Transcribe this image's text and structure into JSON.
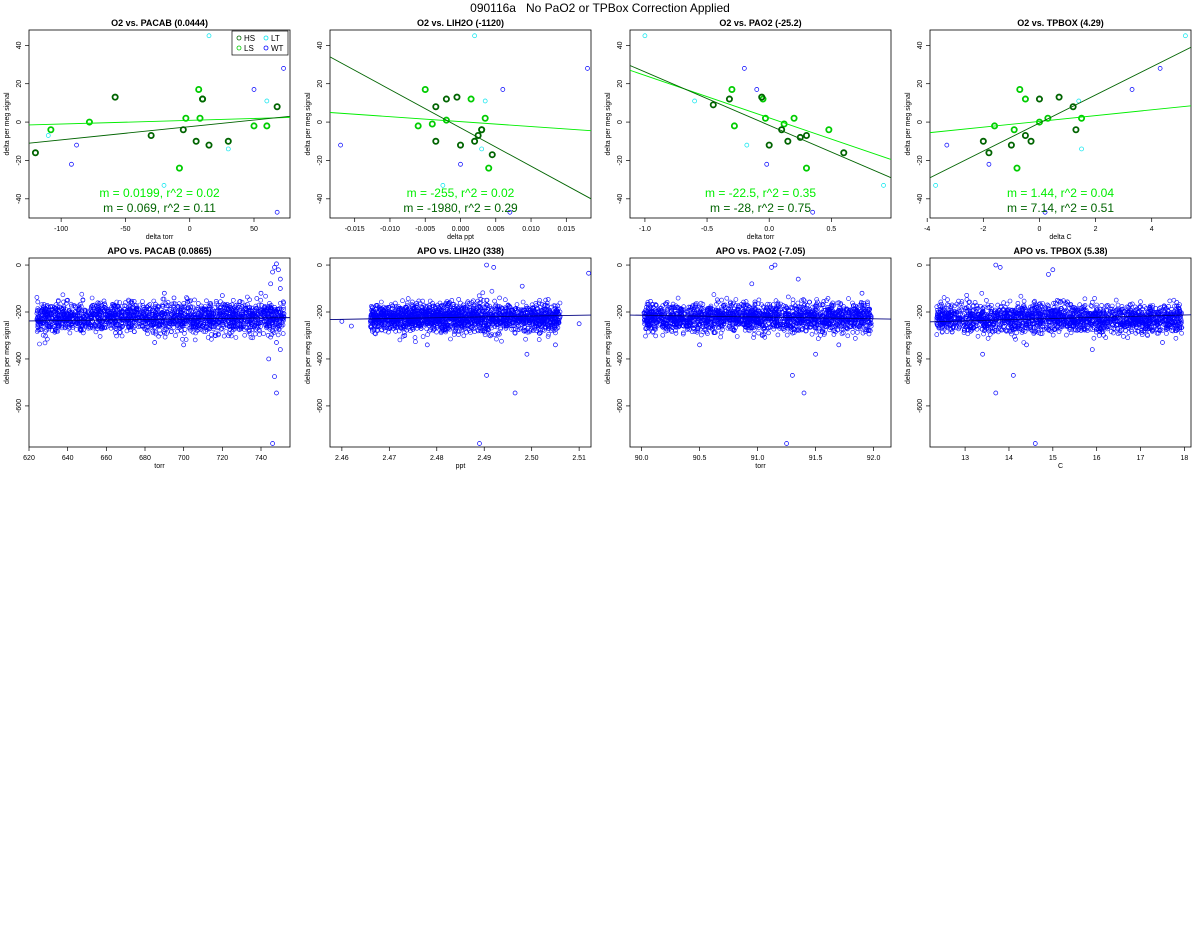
{
  "page": {
    "title": "090116a   No PaO2 or TPBox Correction Applied"
  },
  "colors": {
    "hs": "#006400",
    "ls": "#00cc00",
    "lt": "#00e5ee",
    "wt": "#0000ff",
    "green_fit": "#00ee00",
    "apo_fit": "#000080"
  },
  "chart_data": [
    {
      "id": "o2-pacab",
      "type": "scatter",
      "title": "O2 vs. PACAB (0.0444)",
      "xlabel": "delta torr",
      "ylabel": "delta per meg signal",
      "xlim": [
        -125,
        78
      ],
      "ylim": [
        -50,
        48
      ],
      "xticks": [
        -100,
        -50,
        0,
        50
      ],
      "yticks": [
        -40,
        -20,
        0,
        20,
        40
      ],
      "legend": {
        "position": "top-right",
        "entries": [
          {
            "label": "HS",
            "group": "hs"
          },
          {
            "label": "LT",
            "group": "lt"
          },
          {
            "label": "LS",
            "group": "ls"
          },
          {
            "label": "WT",
            "group": "wt"
          }
        ]
      },
      "fits": [
        {
          "color": "green_fit",
          "x": [
            -125,
            78
          ],
          "y": [
            -1.5,
            2.4
          ]
        },
        {
          "color": "hs",
          "x": [
            -125,
            78
          ],
          "y": [
            -11.0,
            3.0
          ]
        }
      ],
      "annotations": [
        {
          "text": "m = 0.0199, r^2 = 0.02",
          "color": "green_fit"
        },
        {
          "text": "m = 0.069, r^2 = 0.11",
          "color": "hs"
        }
      ],
      "points": {
        "hs": [
          [
            -120,
            -16
          ],
          [
            -58,
            13
          ],
          [
            -30,
            -7
          ],
          [
            -5,
            -4
          ],
          [
            5,
            -10
          ],
          [
            10,
            12
          ],
          [
            15,
            -12
          ],
          [
            30,
            -10
          ],
          [
            68,
            8
          ]
        ],
        "ls": [
          [
            -108,
            -4
          ],
          [
            -78,
            0
          ],
          [
            -8,
            -24
          ],
          [
            -3,
            2
          ],
          [
            7,
            17
          ],
          [
            8,
            2
          ],
          [
            10,
            12
          ],
          [
            50,
            -2
          ],
          [
            60,
            -2
          ]
        ],
        "lt": [
          [
            -110,
            -7
          ],
          [
            -20,
            -33
          ],
          [
            15,
            45
          ],
          [
            60,
            11
          ],
          [
            30,
            -14
          ]
        ],
        "wt": [
          [
            -88,
            -12
          ],
          [
            -92,
            -22
          ],
          [
            73,
            28
          ],
          [
            68,
            -47
          ],
          [
            50,
            17
          ]
        ]
      }
    },
    {
      "id": "o2-lih2o",
      "type": "scatter",
      "title": "O2 vs. LIH2O (-1120)",
      "xlabel": "delta ppt",
      "ylabel": "delta per meg signal",
      "xlim": [
        -0.0185,
        0.0185
      ],
      "ylim": [
        -50,
        48
      ],
      "xticks": [
        -0.015,
        -0.01,
        -0.005,
        0.0,
        0.005,
        0.01,
        0.015
      ],
      "xtick_labels": [
        "-0.015",
        "-0.010",
        "-0.005",
        "0.000",
        "0.005",
        "0.010",
        "0.015"
      ],
      "yticks": [
        -40,
        -20,
        0,
        20,
        40
      ],
      "fits": [
        {
          "color": "green_fit",
          "x": [
            -0.0185,
            0.0185
          ],
          "y": [
            5.0,
            -4.5
          ]
        },
        {
          "color": "hs",
          "x": [
            -0.0185,
            0.0185
          ],
          "y": [
            34.0,
            -40.0
          ]
        }
      ],
      "annotations": [
        {
          "text": "m = -255, r^2 = 0.02",
          "color": "green_fit"
        },
        {
          "text": "m = -1980, r^2 = 0.29",
          "color": "hs"
        }
      ],
      "points": {
        "hs": [
          [
            -0.0035,
            8
          ],
          [
            -0.0035,
            -10
          ],
          [
            -0.002,
            12
          ],
          [
            -0.0005,
            13
          ],
          [
            0.0,
            -12
          ],
          [
            0.002,
            -10
          ],
          [
            0.0025,
            -7
          ],
          [
            0.003,
            -4
          ],
          [
            0.0045,
            -17
          ]
        ],
        "ls": [
          [
            -0.006,
            -2
          ],
          [
            -0.005,
            17
          ],
          [
            -0.004,
            -1
          ],
          [
            -0.002,
            1
          ],
          [
            0.0015,
            12
          ],
          [
            0.003,
            -4
          ],
          [
            0.0035,
            2
          ],
          [
            0.004,
            -24
          ]
        ],
        "lt": [
          [
            -0.0025,
            -33
          ],
          [
            0.002,
            45
          ],
          [
            0.0035,
            11
          ],
          [
            0.003,
            -14
          ]
        ],
        "wt": [
          [
            -0.017,
            -12
          ],
          [
            0.018,
            28
          ],
          [
            0.007,
            -47
          ],
          [
            0.006,
            17
          ],
          [
            0.0,
            -22
          ]
        ]
      }
    },
    {
      "id": "o2-pao2",
      "type": "scatter",
      "title": "O2 vs. PAO2 (-25.2)",
      "xlabel": "delta torr",
      "ylabel": "delta per meg signal",
      "xlim": [
        -1.12,
        0.98
      ],
      "ylim": [
        -50,
        48
      ],
      "xticks": [
        -1.0,
        -0.5,
        0.0,
        0.5
      ],
      "xtick_labels": [
        "-1.0",
        "-0.5",
        "0.0",
        "0.5"
      ],
      "yticks": [
        -40,
        -20,
        0,
        20,
        40
      ],
      "fits": [
        {
          "color": "green_fit",
          "x": [
            -1.12,
            0.98
          ],
          "y": [
            27.0,
            -19.5
          ]
        },
        {
          "color": "hs",
          "x": [
            -1.12,
            0.98
          ],
          "y": [
            29.5,
            -29.0
          ]
        }
      ],
      "annotations": [
        {
          "text": "m = -22.5, r^2 = 0.35",
          "color": "green_fit"
        },
        {
          "text": "m = -28, r^2 = 0.75",
          "color": "hs"
        }
      ],
      "points": {
        "hs": [
          [
            -0.45,
            9
          ],
          [
            -0.32,
            12
          ],
          [
            -0.06,
            13
          ],
          [
            0.0,
            -12
          ],
          [
            0.1,
            -4
          ],
          [
            0.15,
            -10
          ],
          [
            0.25,
            -8
          ],
          [
            0.3,
            -7
          ],
          [
            0.6,
            -16
          ]
        ],
        "ls": [
          [
            -0.3,
            17
          ],
          [
            -0.28,
            -2
          ],
          [
            -0.05,
            12
          ],
          [
            -0.03,
            2
          ],
          [
            0.12,
            -1
          ],
          [
            0.2,
            2
          ],
          [
            0.3,
            -24
          ],
          [
            0.48,
            -4
          ]
        ],
        "lt": [
          [
            -1.0,
            45
          ],
          [
            -0.6,
            11
          ],
          [
            -0.18,
            -12
          ],
          [
            0.92,
            -33
          ]
        ],
        "wt": [
          [
            -0.2,
            28
          ],
          [
            0.35,
            -47
          ],
          [
            -0.1,
            17
          ],
          [
            -0.02,
            -22
          ]
        ]
      }
    },
    {
      "id": "o2-tpbox",
      "type": "scatter",
      "title": "O2 vs. TPBOX (4.29)",
      "xlabel": "delta C",
      "ylabel": "delta per meg signal",
      "xlim": [
        -3.9,
        5.4
      ],
      "ylim": [
        -50,
        48
      ],
      "xticks": [
        -4,
        -2,
        0,
        2,
        4
      ],
      "yticks": [
        -40,
        -20,
        0,
        20,
        40
      ],
      "fits": [
        {
          "color": "green_fit",
          "x": [
            -3.9,
            5.4
          ],
          "y": [
            -5.5,
            8.5
          ]
        },
        {
          "color": "hs",
          "x": [
            -3.9,
            5.4
          ],
          "y": [
            -29.0,
            39.0
          ]
        }
      ],
      "annotations": [
        {
          "text": "m = 1.44, r^2 = 0.04",
          "color": "green_fit"
        },
        {
          "text": "m = 7.14, r^2 = 0.51",
          "color": "hs"
        }
      ],
      "points": {
        "hs": [
          [
            -2.0,
            -10
          ],
          [
            -1.8,
            -16
          ],
          [
            -1.0,
            -12
          ],
          [
            -0.5,
            -7
          ],
          [
            -0.3,
            -10
          ],
          [
            0.0,
            12
          ],
          [
            0.7,
            13
          ],
          [
            1.2,
            8
          ],
          [
            1.3,
            -4
          ]
        ],
        "ls": [
          [
            -1.6,
            -2
          ],
          [
            -0.8,
            -24
          ],
          [
            -0.7,
            17
          ],
          [
            -0.5,
            12
          ],
          [
            0.0,
            0
          ],
          [
            0.3,
            2
          ],
          [
            1.5,
            2
          ],
          [
            -0.9,
            -4
          ]
        ],
        "lt": [
          [
            -3.7,
            -33
          ],
          [
            5.2,
            45
          ],
          [
            1.5,
            -14
          ],
          [
            1.4,
            11
          ]
        ],
        "wt": [
          [
            -3.3,
            -12
          ],
          [
            4.3,
            28
          ],
          [
            0.2,
            -47
          ],
          [
            3.3,
            17
          ],
          [
            -1.8,
            -22
          ]
        ]
      }
    },
    {
      "id": "apo-pacab",
      "type": "scatter",
      "title": "APO vs. PACAB (0.0865)",
      "xlabel": "torr",
      "ylabel": "delta per meg signal",
      "xlim": [
        620,
        755
      ],
      "ylim": [
        -775,
        30
      ],
      "xticks": [
        620,
        640,
        660,
        680,
        700,
        720,
        740
      ],
      "yticks": [
        0,
        -200,
        -400,
        -600
      ],
      "fits": [
        {
          "color": "apo_fit",
          "x": [
            620,
            755
          ],
          "y": [
            -238,
            -224
          ]
        }
      ],
      "clouds": [
        {
          "x": [
            624,
            752
          ],
          "y_center": -225,
          "y_spread": 32,
          "n": 1900
        }
      ],
      "points": {
        "wt": [
          [
            748,
            5
          ],
          [
            747,
            -10
          ],
          [
            749,
            -20
          ],
          [
            746,
            -30
          ],
          [
            750,
            -60
          ],
          [
            745,
            -80
          ],
          [
            747,
            -475
          ],
          [
            748,
            -545
          ],
          [
            746,
            -760
          ],
          [
            744,
            -400
          ],
          [
            750,
            -360
          ],
          [
            740,
            -120
          ],
          [
            690,
            -120
          ],
          [
            695,
            -140
          ],
          [
            685,
            -330
          ],
          [
            700,
            -340
          ],
          [
            720,
            -130
          ],
          [
            640,
            -150
          ],
          [
            750,
            -100
          ],
          [
            748,
            -330
          ]
        ]
      }
    },
    {
      "id": "apo-lih2o",
      "type": "scatter",
      "title": "APO vs. LIH2O (338)",
      "xlabel": "ppt",
      "ylabel": "delta per meg signal",
      "xlim": [
        2.4575,
        2.5125
      ],
      "ylim": [
        -775,
        30
      ],
      "xticks": [
        2.46,
        2.47,
        2.48,
        2.49,
        2.5,
        2.51
      ],
      "xtick_labels": [
        "2.46",
        "2.47",
        "2.48",
        "2.49",
        "2.50",
        "2.51"
      ],
      "yticks": [
        0,
        -200,
        -400,
        -600
      ],
      "fits": [
        {
          "color": "apo_fit",
          "x": [
            2.4575,
            2.5125
          ],
          "y": [
            -232,
            -213
          ]
        }
      ],
      "clouds": [
        {
          "x": [
            2.466,
            2.506
          ],
          "y_center": -225,
          "y_spread": 30,
          "n": 1900
        }
      ],
      "points": {
        "wt": [
          [
            2.4905,
            0
          ],
          [
            2.492,
            -10
          ],
          [
            2.512,
            -35
          ],
          [
            2.498,
            -90
          ],
          [
            2.489,
            -760
          ],
          [
            2.4905,
            -470
          ],
          [
            2.4965,
            -545
          ],
          [
            2.499,
            -380
          ],
          [
            2.478,
            -340
          ],
          [
            2.505,
            -340
          ],
          [
            2.46,
            -240
          ],
          [
            2.462,
            -260
          ],
          [
            2.51,
            -250
          ]
        ]
      }
    },
    {
      "id": "apo-pao2",
      "type": "scatter",
      "title": "APO vs. PAO2 (-7.05)",
      "xlabel": "torr",
      "ylabel": "delta per meg signal",
      "xlim": [
        89.9,
        92.15
      ],
      "ylim": [
        -775,
        30
      ],
      "xticks": [
        90.0,
        90.5,
        91.0,
        91.5,
        92.0
      ],
      "xtick_labels": [
        "90.0",
        "90.5",
        "91.0",
        "91.5",
        "92.0"
      ],
      "yticks": [
        0,
        -200,
        -400,
        -600
      ],
      "fits": [
        {
          "color": "apo_fit",
          "x": [
            89.9,
            92.15
          ],
          "y": [
            -213,
            -230
          ]
        }
      ],
      "clouds": [
        {
          "x": [
            90.02,
            91.98
          ],
          "y_center": -225,
          "y_spread": 30,
          "n": 1900
        }
      ],
      "points": {
        "wt": [
          [
            91.15,
            0
          ],
          [
            91.12,
            -10
          ],
          [
            91.35,
            -60
          ],
          [
            90.95,
            -80
          ],
          [
            91.25,
            -760
          ],
          [
            91.3,
            -470
          ],
          [
            91.4,
            -545
          ],
          [
            91.5,
            -380
          ],
          [
            90.5,
            -340
          ],
          [
            91.7,
            -340
          ],
          [
            91.9,
            -120
          ],
          [
            90.1,
            -180
          ]
        ]
      }
    },
    {
      "id": "apo-tpbox",
      "type": "scatter",
      "title": "APO vs. TPBOX (5.38)",
      "xlabel": "C",
      "ylabel": "delta per meg signal",
      "xlim": [
        12.2,
        18.15
      ],
      "ylim": [
        -775,
        30
      ],
      "xticks": [
        13,
        14,
        15,
        16,
        17,
        18
      ],
      "yticks": [
        0,
        -200,
        -400,
        -600
      ],
      "fits": [
        {
          "color": "apo_fit",
          "x": [
            12.2,
            18.15
          ],
          "y": [
            -242,
            -212
          ]
        }
      ],
      "clouds": [
        {
          "x": [
            12.35,
            17.95
          ],
          "y_center": -228,
          "y_spread": 30,
          "n": 1900
        }
      ],
      "points": {
        "wt": [
          [
            13.7,
            0
          ],
          [
            13.8,
            -10
          ],
          [
            15.0,
            -20
          ],
          [
            14.9,
            -40
          ],
          [
            14.6,
            -760
          ],
          [
            14.1,
            -470
          ],
          [
            13.7,
            -545
          ],
          [
            13.4,
            -380
          ],
          [
            14.4,
            -340
          ],
          [
            15.9,
            -360
          ],
          [
            17.5,
            -330
          ],
          [
            12.4,
            -260
          ]
        ]
      }
    }
  ]
}
